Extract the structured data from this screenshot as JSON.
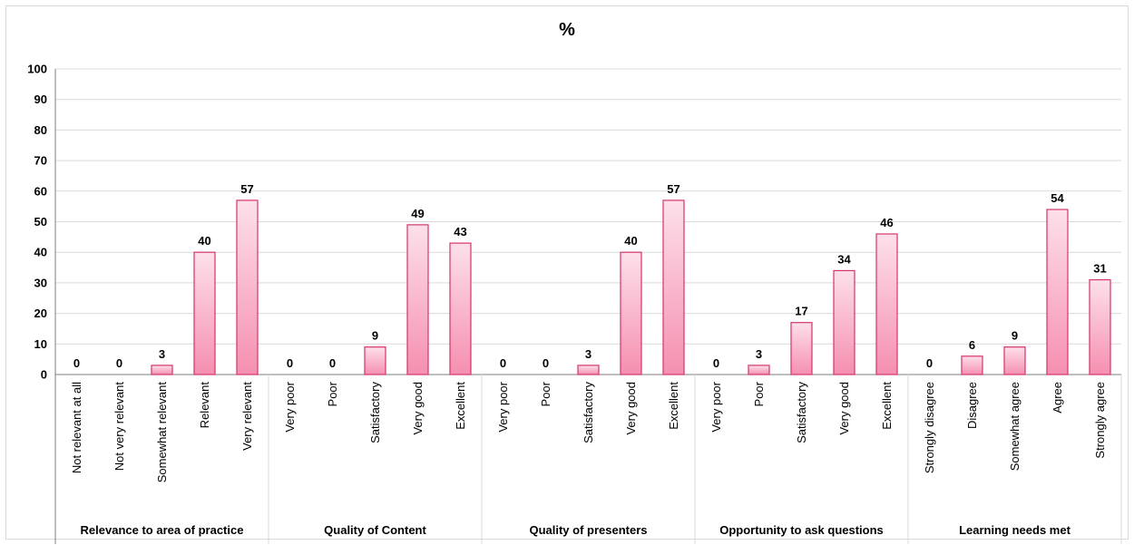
{
  "chart_data": {
    "type": "bar",
    "title": "%",
    "ylim": [
      0,
      100
    ],
    "yticks": [
      0,
      10,
      20,
      30,
      40,
      50,
      60,
      70,
      80,
      90,
      100
    ],
    "grid": true,
    "legend": "none",
    "colors": {
      "bar_fill_top": "#fde0ea",
      "bar_fill_bottom": "#f58fb0",
      "bar_stroke": "#d6336c",
      "grid": "#d9d9d9",
      "axis": "#7f7f7f"
    },
    "groups": [
      {
        "name": "Relevance to area of practice",
        "categories": [
          "Not relevant at all",
          "Not very relevant",
          "Somewhat relevant",
          "Relevant",
          "Very relevant"
        ],
        "values": [
          0,
          0,
          3,
          40,
          57
        ]
      },
      {
        "name": "Quality of Content",
        "categories": [
          "Very poor",
          "Poor",
          "Satisfactory",
          "Very good",
          "Excellent"
        ],
        "values": [
          0,
          0,
          9,
          49,
          43
        ]
      },
      {
        "name": "Quality of presenters",
        "categories": [
          "Very poor",
          "Poor",
          "Satisfactory",
          "Very good",
          "Excellent"
        ],
        "values": [
          0,
          0,
          3,
          40,
          57
        ]
      },
      {
        "name": "Opportunity to ask questions",
        "categories": [
          "Very poor",
          "Poor",
          "Satisfactory",
          "Very good",
          "Excellent"
        ],
        "values": [
          0,
          3,
          17,
          34,
          46
        ]
      },
      {
        "name": "Learning needs met",
        "categories": [
          "Strongly disagree",
          "Disagree",
          "Somewhat agree",
          "Agree",
          "Strongly agree"
        ],
        "values": [
          0,
          6,
          9,
          54,
          31
        ]
      }
    ]
  }
}
